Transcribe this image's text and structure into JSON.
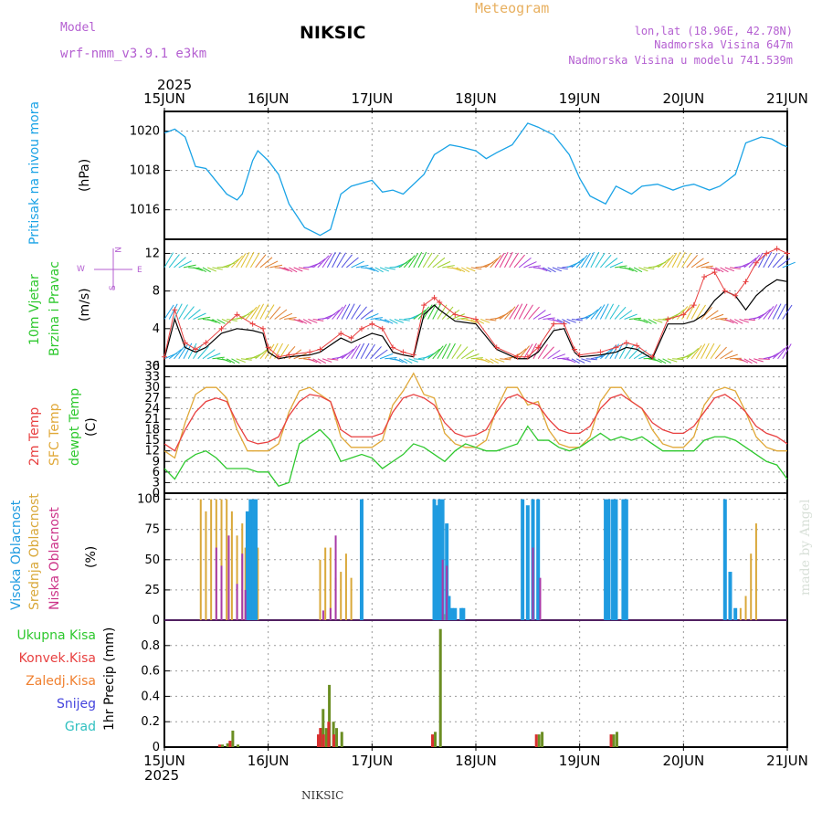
{
  "header": {
    "model_label": "Model",
    "model_name": "wrf-nmm_v3.9.1 e3km",
    "station": "NIKSIC",
    "meteogram": "Meteogram",
    "lonlat": "lon,lat (18.96E, 42.78N)",
    "altitude": "Nadmorska Visina 647m",
    "model_altitude": "Nadmorska Visina u modelu 741.539m",
    "year": "2025",
    "footer_station": "NIKSIC",
    "watermark": "made by Angel"
  },
  "colors": {
    "pressure": "#1aa3e6",
    "temp2m": "#e84040",
    "sfc_temp": "#e0a838",
    "dewpoint": "#2ec82e",
    "high_cloud": "#1f9be0",
    "mid_cloud": "#d9a83a",
    "low_cloud": "#a83aa8",
    "total_precip": "#6b8e23",
    "conv_precip": "#d83030"
  },
  "time_axis": {
    "labels": [
      "15JUN",
      "16JUN",
      "17JUN",
      "18JUN",
      "19JUN",
      "20JUN",
      "21JUN"
    ],
    "day_range": [
      0,
      6
    ]
  },
  "chart_data": [
    {
      "type": "line",
      "title": "Pritisak na nivou mora",
      "ylabel": "(hPa)",
      "ylim": [
        1014.5,
        1021
      ],
      "yticks": [
        1016,
        1018,
        1020
      ],
      "series": [
        {
          "name": "Pritisak na nivou mora",
          "x": [
            0,
            0.1,
            0.2,
            0.3,
            0.4,
            0.6,
            0.7,
            0.75,
            0.85,
            0.9,
            1.0,
            1.1,
            1.2,
            1.25,
            1.35,
            1.5,
            1.6,
            1.65,
            1.7,
            1.8,
            2.0,
            2.1,
            2.2,
            2.3,
            2.5,
            2.6,
            2.75,
            2.85,
            3.0,
            3.1,
            3.2,
            3.35,
            3.5,
            3.6,
            3.75,
            3.9,
            4.0,
            4.1,
            4.25,
            4.35,
            4.5,
            4.6,
            4.75,
            4.9,
            5.0,
            5.1,
            5.25,
            5.35,
            5.5,
            5.6,
            5.75,
            5.85,
            5.95,
            6.0
          ],
          "values": [
            1019.9,
            1020.1,
            1019.7,
            1018.2,
            1018.1,
            1016.8,
            1016.5,
            1016.8,
            1018.5,
            1019.0,
            1018.5,
            1017.8,
            1016.3,
            1015.9,
            1015.1,
            1014.7,
            1015.0,
            1015.9,
            1016.8,
            1017.2,
            1017.5,
            1016.9,
            1017.0,
            1016.8,
            1017.8,
            1018.8,
            1019.3,
            1019.2,
            1019.0,
            1018.6,
            1018.9,
            1019.3,
            1020.4,
            1020.2,
            1019.8,
            1018.8,
            1017.6,
            1016.7,
            1016.3,
            1017.2,
            1016.8,
            1017.2,
            1017.3,
            1017.0,
            1017.2,
            1017.3,
            1017.0,
            1017.2,
            1017.8,
            1019.4,
            1019.7,
            1019.6,
            1019.3,
            1019.2
          ]
        }
      ]
    },
    {
      "type": "line",
      "title": "10m Vjetar Brzina i Pravac",
      "ylabel": "(m/s)",
      "ylim": [
        0,
        13.5
      ],
      "yticks": [
        0,
        4,
        8,
        12
      ],
      "direction_legend": {
        "n": "N",
        "s": "S",
        "e": "E",
        "w": "W"
      },
      "series": [
        {
          "name": "10m wind speed",
          "x": [
            0,
            0.1,
            0.2,
            0.3,
            0.4,
            0.55,
            0.7,
            0.85,
            0.95,
            1.0,
            1.1,
            1.2,
            1.4,
            1.5,
            1.7,
            1.8,
            1.9,
            2.0,
            2.1,
            2.2,
            2.3,
            2.4,
            2.5,
            2.6,
            2.65,
            2.8,
            3.0,
            3.2,
            3.4,
            3.5,
            3.6,
            3.75,
            3.85,
            3.95,
            4.0,
            4.2,
            4.35,
            4.45,
            4.55,
            4.7,
            4.85,
            5.0,
            5.1,
            5.2,
            5.3,
            5.4,
            5.5,
            5.6,
            5.7,
            5.8,
            5.9,
            6.0
          ],
          "values": [
            0.8,
            5.0,
            2.0,
            1.5,
            2.0,
            3.5,
            4.0,
            3.8,
            3.5,
            1.5,
            0.8,
            1.0,
            1.2,
            1.5,
            3.0,
            2.5,
            3.0,
            3.5,
            3.2,
            1.5,
            1.2,
            1.0,
            5.5,
            6.5,
            6.0,
            4.8,
            4.5,
            1.8,
            0.8,
            0.8,
            1.5,
            3.8,
            4.0,
            1.5,
            1.0,
            1.2,
            1.5,
            2.0,
            1.8,
            0.8,
            4.5,
            4.5,
            4.8,
            5.5,
            7.0,
            8.0,
            7.5,
            6.0,
            7.5,
            8.5,
            9.2,
            9.0
          ]
        },
        {
          "name": "10m wind gust",
          "x": [
            0,
            0.1,
            0.2,
            0.3,
            0.4,
            0.55,
            0.7,
            0.85,
            0.95,
            1.0,
            1.1,
            1.2,
            1.4,
            1.5,
            1.7,
            1.8,
            1.9,
            2.0,
            2.1,
            2.2,
            2.3,
            2.4,
            2.5,
            2.6,
            2.65,
            2.8,
            3.0,
            3.2,
            3.4,
            3.5,
            3.6,
            3.75,
            3.85,
            3.95,
            4.0,
            4.2,
            4.35,
            4.45,
            4.55,
            4.7,
            4.85,
            5.0,
            5.1,
            5.2,
            5.3,
            5.4,
            5.5,
            5.6,
            5.7,
            5.8,
            5.9,
            6.0
          ],
          "values": [
            1.0,
            6.0,
            2.5,
            1.8,
            2.5,
            4.0,
            5.5,
            4.5,
            4.0,
            2.0,
            1.0,
            1.2,
            1.5,
            1.8,
            3.5,
            3.0,
            4.0,
            4.5,
            4.0,
            2.0,
            1.5,
            1.2,
            6.5,
            7.3,
            6.8,
            5.5,
            5.0,
            2.0,
            1.0,
            1.0,
            2.0,
            4.5,
            4.5,
            1.8,
            1.2,
            1.5,
            2.0,
            2.5,
            2.2,
            1.0,
            5.0,
            5.5,
            6.5,
            9.5,
            10.0,
            8.0,
            7.5,
            9.0,
            11.0,
            12.0,
            12.5,
            12.0
          ]
        }
      ]
    },
    {
      "type": "line",
      "title": "2m Temp / SFC Temp / dewpt Temp",
      "ylabel": "(C)",
      "ylim": [
        0,
        36
      ],
      "yticks": [
        0,
        3,
        6,
        9,
        12,
        15,
        18,
        21,
        24,
        27,
        30,
        33,
        36
      ],
      "series": [
        {
          "name": "2m Temp",
          "x": [
            0,
            0.1,
            0.2,
            0.3,
            0.4,
            0.5,
            0.6,
            0.7,
            0.8,
            0.9,
            1.0,
            1.1,
            1.2,
            1.3,
            1.4,
            1.5,
            1.6,
            1.7,
            1.8,
            1.9,
            2.0,
            2.1,
            2.2,
            2.3,
            2.4,
            2.5,
            2.6,
            2.7,
            2.8,
            2.9,
            3.0,
            3.1,
            3.2,
            3.3,
            3.4,
            3.5,
            3.6,
            3.7,
            3.8,
            3.9,
            4.0,
            4.1,
            4.2,
            4.3,
            4.4,
            4.5,
            4.6,
            4.7,
            4.8,
            4.9,
            5.0,
            5.1,
            5.2,
            5.3,
            5.4,
            5.5,
            5.6,
            5.7,
            5.8,
            5.9,
            6.0
          ],
          "values": [
            14,
            12,
            18,
            23,
            26,
            27,
            26,
            20,
            15,
            14,
            14.5,
            16,
            22,
            26,
            28,
            27.5,
            26,
            18,
            16,
            16,
            16,
            17,
            23,
            27,
            28,
            27,
            25,
            20,
            17,
            16,
            16.5,
            18,
            23,
            27,
            28,
            26,
            25,
            21,
            18,
            17,
            17,
            19,
            24,
            27,
            28,
            26,
            24,
            20,
            18,
            17,
            17,
            19,
            23,
            27,
            28,
            26,
            23,
            19,
            17,
            16,
            14
          ]
        },
        {
          "name": "SFC Temp",
          "x": [
            0,
            0.1,
            0.2,
            0.3,
            0.4,
            0.5,
            0.6,
            0.7,
            0.8,
            0.9,
            1.0,
            1.1,
            1.2,
            1.3,
            1.4,
            1.5,
            1.6,
            1.7,
            1.8,
            1.9,
            2.0,
            2.1,
            2.2,
            2.3,
            2.4,
            2.5,
            2.6,
            2.7,
            2.8,
            2.9,
            3.0,
            3.1,
            3.2,
            3.3,
            3.4,
            3.5,
            3.6,
            3.7,
            3.8,
            3.9,
            4.0,
            4.1,
            4.2,
            4.3,
            4.4,
            4.5,
            4.6,
            4.7,
            4.8,
            4.9,
            5.0,
            5.1,
            5.2,
            5.3,
            5.4,
            5.5,
            5.6,
            5.7,
            5.8,
            5.9,
            6.0
          ],
          "values": [
            12,
            10,
            20,
            28,
            30,
            30,
            27,
            18,
            12,
            12,
            12,
            14,
            23,
            29,
            30,
            28,
            26,
            16,
            13,
            13,
            13,
            15,
            25,
            29,
            34,
            28,
            27,
            17,
            14,
            13,
            13,
            15,
            24,
            30,
            30,
            25,
            26,
            18,
            14,
            13,
            13,
            16,
            26,
            30,
            30,
            26,
            24,
            18,
            14,
            13,
            13,
            16,
            25,
            29,
            30,
            29,
            23,
            16,
            13,
            12,
            12
          ]
        },
        {
          "name": "dewpt Temp",
          "x": [
            0,
            0.1,
            0.2,
            0.3,
            0.4,
            0.5,
            0.6,
            0.7,
            0.8,
            0.9,
            1.0,
            1.1,
            1.2,
            1.3,
            1.4,
            1.5,
            1.6,
            1.7,
            1.8,
            1.9,
            2.0,
            2.1,
            2.2,
            2.3,
            2.4,
            2.5,
            2.6,
            2.7,
            2.8,
            2.9,
            3.0,
            3.1,
            3.2,
            3.3,
            3.4,
            3.5,
            3.6,
            3.7,
            3.8,
            3.9,
            4.0,
            4.1,
            4.2,
            4.3,
            4.4,
            4.5,
            4.6,
            4.7,
            4.8,
            4.9,
            5.0,
            5.1,
            5.2,
            5.3,
            5.4,
            5.5,
            5.6,
            5.7,
            5.8,
            5.9,
            6.0
          ],
          "values": [
            7,
            4,
            9,
            11,
            12,
            10,
            7,
            7,
            7,
            6,
            6,
            2,
            3,
            14,
            16,
            18,
            15,
            9,
            10,
            11,
            10,
            7,
            9,
            11,
            14,
            13,
            11,
            9,
            12,
            14,
            13,
            12,
            12,
            13,
            14,
            19,
            15,
            15,
            13,
            12,
            13,
            15,
            17,
            15,
            16,
            15,
            16,
            14,
            12,
            12,
            12,
            12,
            15,
            16,
            16,
            15,
            13,
            11,
            9,
            8,
            4
          ]
        }
      ]
    },
    {
      "type": "bar",
      "title": "Visoka / Srednja / Niska Oblacnost",
      "ylabel": "(%)",
      "ylim": [
        0,
        105
      ],
      "yticks": [
        0,
        25,
        50,
        75,
        100
      ],
      "series": [
        {
          "name": "Visoka Oblacnost",
          "x": [
            0.8,
            0.83,
            0.86,
            0.88,
            1.9,
            2.6,
            2.62,
            2.65,
            2.68,
            2.72,
            2.74,
            2.77,
            2.8,
            2.86,
            2.88,
            3.45,
            3.5,
            3.55,
            3.6,
            4.25,
            4.28,
            4.32,
            4.35,
            4.42,
            4.45,
            5.4,
            5.45,
            5.5
          ],
          "values": [
            90,
            100,
            100,
            100,
            100,
            100,
            95,
            100,
            100,
            80,
            20,
            10,
            10,
            10,
            10,
            100,
            95,
            100,
            100,
            100,
            100,
            100,
            100,
            100,
            100,
            100,
            40,
            10
          ]
        },
        {
          "name": "Srednja Oblacnost",
          "x": [
            0.35,
            0.4,
            0.45,
            0.5,
            0.55,
            0.6,
            0.65,
            0.7,
            0.75,
            0.78,
            0.85,
            0.9,
            1.5,
            1.55,
            1.6,
            1.65,
            1.7,
            1.75,
            1.8,
            2.6,
            2.62,
            2.65,
            2.7,
            5.55,
            5.6,
            5.65,
            5.7
          ],
          "values": [
            100,
            90,
            100,
            100,
            100,
            100,
            90,
            70,
            80,
            60,
            85,
            60,
            50,
            60,
            60,
            35,
            40,
            55,
            35,
            10,
            5,
            5,
            5,
            10,
            20,
            55,
            80
          ]
        },
        {
          "name": "Niska Oblacnost",
          "x": [
            0.5,
            0.55,
            0.62,
            0.7,
            0.75,
            0.78,
            1.53,
            1.6,
            1.65,
            2.68,
            2.72,
            3.55,
            3.62
          ],
          "values": [
            60,
            45,
            70,
            30,
            55,
            25,
            8,
            10,
            70,
            50,
            45,
            60,
            35
          ]
        }
      ]
    },
    {
      "type": "bar",
      "title": "1hr Precip",
      "ylabel": "1hr Precip (mm)",
      "ylim": [
        0,
        1.0
      ],
      "yticks": [
        0,
        0.2,
        0.4,
        0.6,
        0.8
      ],
      "legend": [
        "Ukupna Kisa",
        "Konvek.Kisa",
        "Zaledj.Kisa",
        "Snijeg",
        "Grad"
      ],
      "series": [
        {
          "name": "Ukupna Kisa",
          "x": [
            0.55,
            0.6,
            0.65,
            0.7,
            1.5,
            1.52,
            1.55,
            1.58,
            1.62,
            1.65,
            1.7,
            2.6,
            2.65,
            3.6,
            3.63,
            4.32,
            4.35
          ],
          "values": [
            0.02,
            0.03,
            0.13,
            0.02,
            0.15,
            0.3,
            0.15,
            0.49,
            0.2,
            0.15,
            0.12,
            0.12,
            0.93,
            0.1,
            0.12,
            0.1,
            0.12
          ]
        },
        {
          "name": "Konvek.Kisa",
          "x": [
            0.55,
            0.65,
            1.5,
            1.52,
            1.55,
            1.6,
            1.65,
            2.6,
            3.6,
            4.32
          ],
          "values": [
            0.02,
            0.05,
            0.1,
            0.15,
            0.1,
            0.2,
            0.1,
            0.1,
            0.1,
            0.1
          ]
        }
      ]
    }
  ]
}
